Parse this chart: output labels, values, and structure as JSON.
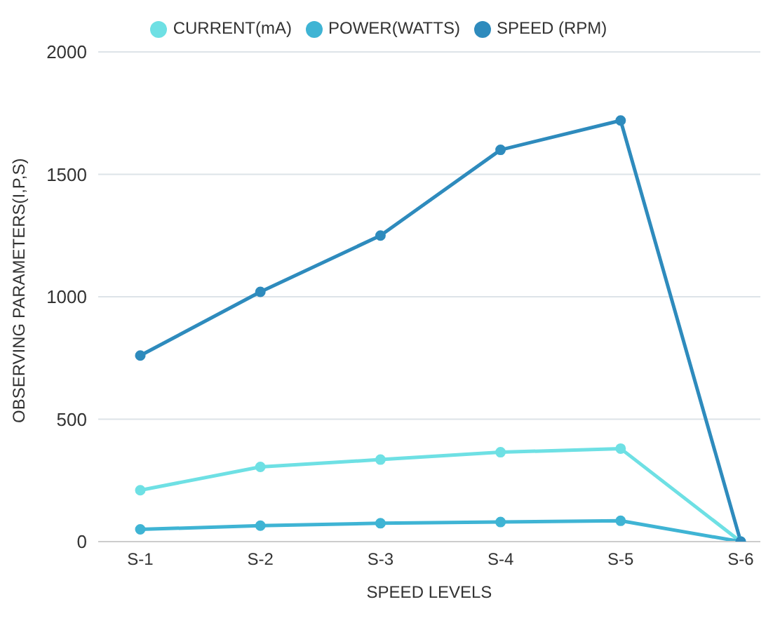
{
  "chart_data": {
    "type": "line",
    "xlabel": "SPEED LEVELS",
    "ylabel": "OBSERVING PARAMETERS(I,P,S)",
    "categories": [
      "S-1",
      "S-2",
      "S-3",
      "S-4",
      "S-5",
      "S-6"
    ],
    "series": [
      {
        "name": "CURRENT(mA)",
        "color": "#6ee0e4",
        "values": [
          210,
          305,
          335,
          365,
          380,
          0
        ]
      },
      {
        "name": "POWER(WATTS)",
        "color": "#3fb4d4",
        "values": [
          50,
          65,
          75,
          80,
          85,
          0
        ]
      },
      {
        "name": "SPEED (RPM)",
        "color": "#2e8bbd",
        "values": [
          760,
          1020,
          1250,
          1600,
          1720,
          0
        ]
      }
    ],
    "ylim": [
      0,
      2000
    ],
    "yticks": [
      0,
      500,
      1000,
      1500,
      2000
    ],
    "grid": "y",
    "legend": "top",
    "marker": "circle",
    "line_style": "solid"
  }
}
